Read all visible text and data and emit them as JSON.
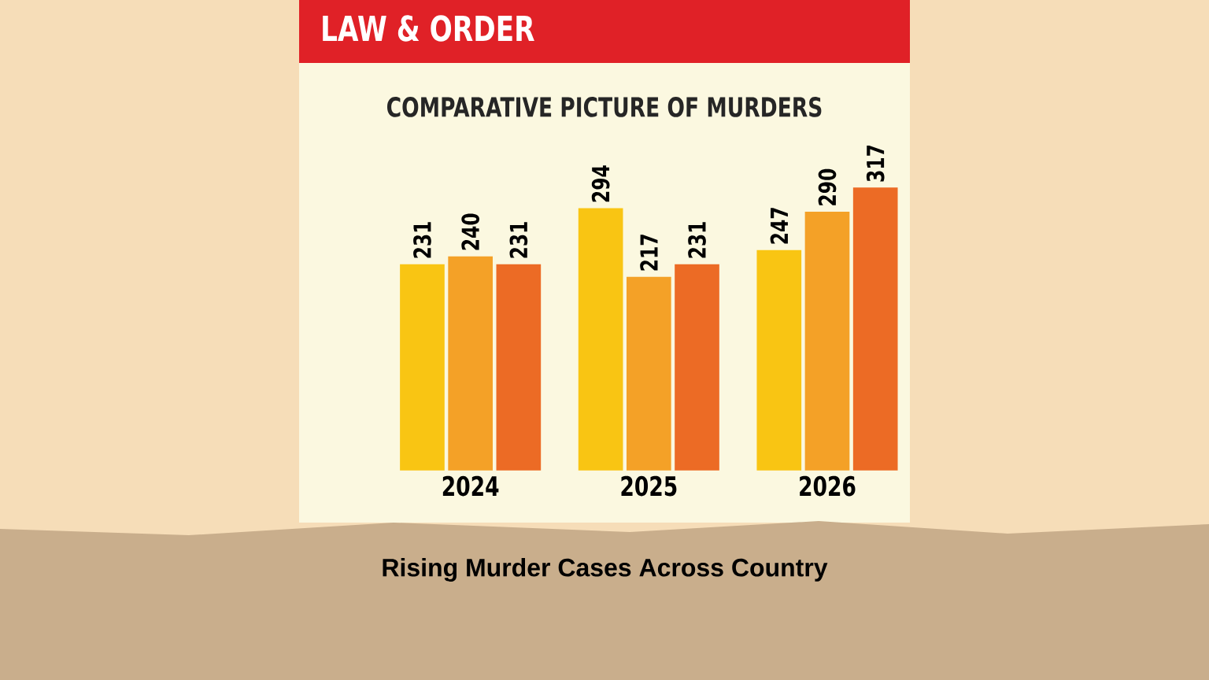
{
  "chart_data": {
    "type": "bar",
    "title": "LAW & ORDER",
    "subtitle": "COMPARATIVE PICTURE OF MURDERS",
    "categories": [
      "2024",
      "2025",
      "2026"
    ],
    "series": [
      {
        "color": "#f9c513",
        "values": [
          231,
          294,
          247
        ]
      },
      {
        "color": "#f4a127",
        "values": [
          240,
          217,
          290
        ]
      },
      {
        "color": "#ec6b25",
        "values": [
          231,
          231,
          317
        ]
      }
    ],
    "data_labels": true,
    "annotations": [
      "Rising Murder Cases Across Country"
    ]
  }
}
